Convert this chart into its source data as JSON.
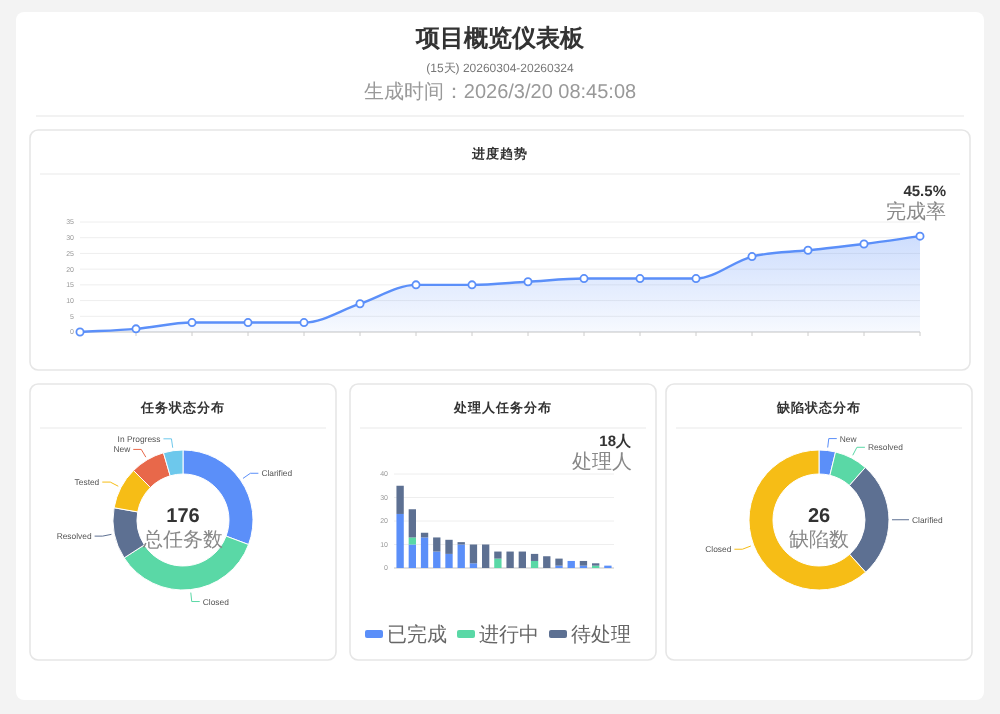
{
  "chart_data": [
    {
      "type": "other",
      "title": "项目概览仪表板",
      "subtitle": "(15天) 20260304-20260324",
      "annotations": [
        "生成时间：2026/3/20 08:45:08"
      ]
    },
    {
      "type": "area",
      "title": "进度趋势",
      "categories": [
        null,
        null,
        null,
        null,
        null,
        null,
        null,
        null,
        null,
        null,
        null,
        null,
        null,
        null,
        null,
        null
      ],
      "series": [
        {
          "color": "#5b8ff9",
          "values": [
            0,
            1,
            3,
            3,
            3,
            9,
            15,
            15,
            16,
            17,
            17,
            17,
            24,
            26,
            28,
            30.5
          ]
        }
      ],
      "ylim": [
        0,
        35
      ],
      "yticks": [
        0,
        5,
        10,
        15,
        20,
        25,
        30,
        35
      ],
      "grid": "y",
      "marker": "circle",
      "annotations": [
        "45.5%",
        "完成率"
      ]
    },
    {
      "type": "donut",
      "title": "任务状态分布",
      "categories": [
        "Clarified",
        "Closed",
        "Resolved",
        "Tested",
        "New",
        "In Progress"
      ],
      "values": [
        30.7,
        35.2,
        11.9,
        9.7,
        8.0,
        4.5
      ],
      "colors": [
        "#5b8ff9",
        "#5ad8a6",
        "#5d7092",
        "#f6bd16",
        "#e8684a",
        "#6dc8ec"
      ],
      "annotations": [
        "176",
        "总任务数"
      ]
    },
    {
      "type": "bar",
      "title": "处理人任务分布",
      "stacked": true,
      "categories": [
        null,
        null,
        null,
        null,
        null,
        null,
        null,
        null,
        null,
        null,
        null,
        null,
        null,
        null,
        null,
        null,
        null,
        null
      ],
      "series": [
        {
          "name": "已完成",
          "color": "#5b8ff9",
          "values": [
            23,
            10,
            13,
            7,
            6,
            10,
            2,
            0,
            0,
            0,
            0,
            0,
            0,
            1,
            3,
            1,
            0,
            1
          ]
        },
        {
          "name": "进行中",
          "color": "#5ad8a6",
          "values": [
            0,
            3,
            0,
            0,
            0,
            0,
            0,
            0,
            4,
            0,
            0,
            3,
            0,
            0,
            0,
            0,
            1,
            0
          ]
        },
        {
          "name": "待处理",
          "color": "#5d7092",
          "values": [
            12,
            12,
            2,
            6,
            6,
            1,
            8,
            10,
            3,
            7,
            7,
            3,
            5,
            3,
            0,
            2,
            1,
            0
          ]
        }
      ],
      "ylim": [
        0,
        40
      ],
      "yticks": [
        0,
        10,
        20,
        30,
        40
      ],
      "grid": "y",
      "legend": "bottom",
      "annotations": [
        "18人",
        "处理人"
      ]
    },
    {
      "type": "donut",
      "title": "缺陷状态分布",
      "categories": [
        "New",
        "Resolved",
        "Clarified",
        "Closed"
      ],
      "values": [
        3.8,
        7.7,
        26.9,
        61.6
      ],
      "colors": [
        "#5b8ff9",
        "#5ad8a6",
        "#5d7092",
        "#f6bd16"
      ],
      "annotations": [
        "26",
        "缺陷数"
      ]
    }
  ]
}
